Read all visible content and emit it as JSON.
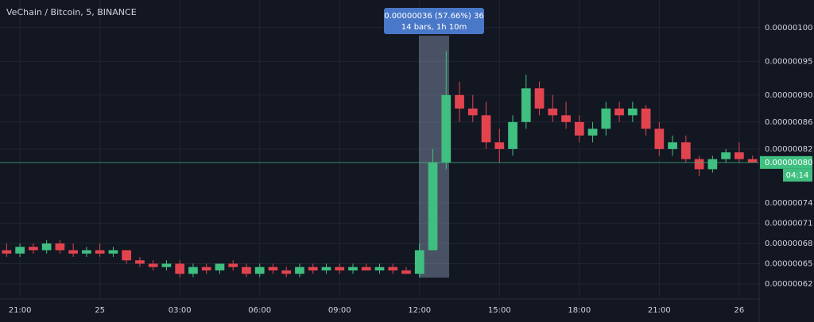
{
  "chart_data": {
    "type": "candlestick",
    "title": "VeChain / Bitcoin, 5, BINANCE",
    "categories": [
      null,
      "21:00",
      null,
      null,
      null,
      null,
      null,
      "25",
      null,
      null,
      null,
      null,
      null,
      "03:00",
      null,
      null,
      null,
      null,
      null,
      "06:00",
      null,
      null,
      null,
      null,
      null,
      "09:00",
      null,
      null,
      null,
      null,
      null,
      "12:00",
      null,
      null,
      null,
      null,
      null,
      "15:00",
      null,
      null,
      null,
      null,
      null,
      "18:00",
      null,
      null,
      null,
      null,
      null,
      "21:00",
      null,
      null,
      null,
      null,
      null,
      "26",
      null
    ],
    "open": [
      6.7e-07,
      6.65e-07,
      6.75e-07,
      6.7e-07,
      6.8e-07,
      6.7e-07,
      6.65e-07,
      6.7e-07,
      6.65e-07,
      6.7e-07,
      6.55e-07,
      6.5e-07,
      6.45e-07,
      6.5e-07,
      6.35e-07,
      6.45e-07,
      6.4e-07,
      6.5e-07,
      6.45e-07,
      6.35e-07,
      6.45e-07,
      6.4e-07,
      6.35e-07,
      6.45e-07,
      6.4e-07,
      6.45e-07,
      6.4e-07,
      6.45e-07,
      6.4e-07,
      6.45e-07,
      6.4e-07,
      6.35e-07,
      6.7e-07,
      8e-07,
      9e-07,
      8.8e-07,
      8.7e-07,
      8.3e-07,
      8.2e-07,
      8.6e-07,
      9.1e-07,
      8.8e-07,
      8.7e-07,
      8.6e-07,
      8.4e-07,
      8.5e-07,
      8.8e-07,
      8.7e-07,
      8.8e-07,
      8.5e-07,
      8.2e-07,
      8.3e-07,
      8.05e-07,
      7.9e-07,
      8.05e-07,
      8.15e-07,
      8.05e-07
    ],
    "high": [
      6.8e-07,
      6.8e-07,
      6.8e-07,
      6.85e-07,
      6.85e-07,
      6.8e-07,
      6.75e-07,
      6.8e-07,
      6.75e-07,
      6.7e-07,
      6.6e-07,
      6.55e-07,
      6.55e-07,
      6.55e-07,
      6.5e-07,
      6.5e-07,
      6.5e-07,
      6.55e-07,
      6.5e-07,
      6.5e-07,
      6.5e-07,
      6.45e-07,
      6.5e-07,
      6.5e-07,
      6.5e-07,
      6.5e-07,
      6.5e-07,
      6.5e-07,
      6.5e-07,
      6.5e-07,
      6.45e-07,
      6.8e-07,
      8.2e-07,
      9.65e-07,
      9.2e-07,
      9e-07,
      8.9e-07,
      8.5e-07,
      8.7e-07,
      9.3e-07,
      9.2e-07,
      9e-07,
      8.9e-07,
      8.7e-07,
      8.6e-07,
      8.9e-07,
      8.9e-07,
      8.9e-07,
      8.85e-07,
      8.6e-07,
      8.4e-07,
      8.4e-07,
      8.1e-07,
      8.1e-07,
      8.2e-07,
      8.3e-07,
      8.1e-07
    ],
    "low": [
      6.6e-07,
      6.6e-07,
      6.65e-07,
      6.65e-07,
      6.65e-07,
      6.6e-07,
      6.6e-07,
      6.6e-07,
      6.6e-07,
      6.5e-07,
      6.45e-07,
      6.4e-07,
      6.4e-07,
      6.3e-07,
      6.3e-07,
      6.35e-07,
      6.35e-07,
      6.4e-07,
      6.3e-07,
      6.3e-07,
      6.35e-07,
      6.3e-07,
      6.3e-07,
      6.35e-07,
      6.35e-07,
      6.35e-07,
      6.35e-07,
      6.4e-07,
      6.35e-07,
      6.35e-07,
      6.35e-07,
      6.3e-07,
      6.7e-07,
      7.9e-07,
      8.6e-07,
      8.6e-07,
      8.2e-07,
      8e-07,
      8.1e-07,
      8.5e-07,
      8.7e-07,
      8.6e-07,
      8.5e-07,
      8.3e-07,
      8.3e-07,
      8.4e-07,
      8.6e-07,
      8.6e-07,
      8.4e-07,
      8.1e-07,
      8.1e-07,
      8e-07,
      7.8e-07,
      7.85e-07,
      8e-07,
      8e-07,
      8e-07
    ],
    "close": [
      6.65e-07,
      6.75e-07,
      6.7e-07,
      6.8e-07,
      6.7e-07,
      6.65e-07,
      6.7e-07,
      6.65e-07,
      6.7e-07,
      6.55e-07,
      6.5e-07,
      6.45e-07,
      6.5e-07,
      6.35e-07,
      6.45e-07,
      6.4e-07,
      6.5e-07,
      6.45e-07,
      6.35e-07,
      6.45e-07,
      6.4e-07,
      6.35e-07,
      6.45e-07,
      6.4e-07,
      6.45e-07,
      6.4e-07,
      6.45e-07,
      6.4e-07,
      6.45e-07,
      6.4e-07,
      6.35e-07,
      6.7e-07,
      8e-07,
      9e-07,
      8.8e-07,
      8.7e-07,
      8.3e-07,
      8.2e-07,
      8.6e-07,
      9.1e-07,
      8.8e-07,
      8.7e-07,
      8.6e-07,
      8.4e-07,
      8.5e-07,
      8.8e-07,
      8.7e-07,
      8.8e-07,
      8.5e-07,
      8.2e-07,
      8.3e-07,
      8.05e-07,
      7.9e-07,
      8.05e-07,
      8.15e-07,
      8.05e-07,
      8e-07
    ],
    "up_color": "#3fbf80",
    "down_color": "#e2444f",
    "ylim": [
      6e-07,
      1.035e-06
    ],
    "yticks": [
      {
        "value": 1e-06,
        "label": "0.00000100"
      },
      {
        "value": 9.5e-07,
        "label": "0.00000095"
      },
      {
        "value": 9e-07,
        "label": "0.00000090"
      },
      {
        "value": 8.6e-07,
        "label": "0.00000086"
      },
      {
        "value": 8.2e-07,
        "label": "0.00000082"
      },
      {
        "value": 7.4e-07,
        "label": "0.00000074"
      },
      {
        "value": 7.1e-07,
        "label": "0.00000071"
      },
      {
        "value": 6.8e-07,
        "label": "0.00000068"
      },
      {
        "value": 6.5e-07,
        "label": "0.00000065"
      },
      {
        "value": 6.2e-07,
        "label": "0.00000062"
      }
    ],
    "grid": true,
    "last_price": {
      "value": 8e-07,
      "label": "0.00000080"
    },
    "countdown": "04:14",
    "measure": {
      "label": "0.00000036 (57.66%) 36",
      "sublabel": "14 bars, 1h 10m"
    }
  }
}
